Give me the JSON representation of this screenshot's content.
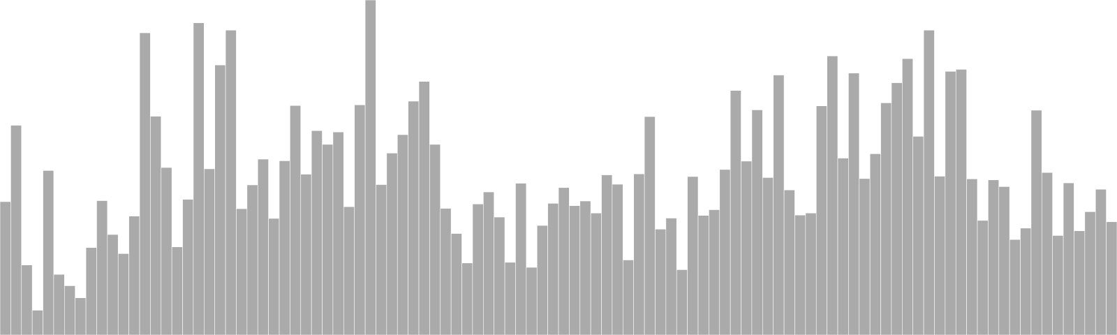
{
  "chart_data": {
    "type": "bar",
    "title": "",
    "xlabel": "",
    "ylabel": "",
    "ylim": [
      0,
      100
    ],
    "grid": false,
    "legend": "none",
    "bar_color": "#aaaaaa",
    "bar_edge_color": "#ffffff",
    "background_color": "#ffffff",
    "values": [
      39.8,
      62.6,
      20.9,
      7.4,
      49.1,
      18.1,
      14.7,
      11.1,
      26.1,
      40.1,
      30.0,
      24.3,
      35.5,
      90.2,
      65.3,
      50.0,
      26.3,
      40.5,
      93.2,
      49.6,
      80.6,
      91.0,
      37.7,
      44.8,
      52.5,
      34.8,
      52.0,
      68.5,
      48.0,
      61.0,
      56.9,
      60.6,
      38.3,
      68.7,
      100.0,
      44.9,
      54.3,
      59.8,
      69.8,
      75.7,
      56.9,
      37.8,
      30.3,
      21.5,
      39.1,
      42.7,
      35.2,
      21.7,
      45.3,
      20.2,
      32.7,
      39.3,
      44.0,
      38.6,
      40.0,
      36.4,
      47.8,
      45.0,
      22.4,
      48.1,
      65.2,
      31.6,
      34.9,
      19.5,
      47.3,
      35.7,
      37.4,
      49.4,
      73.0,
      51.9,
      67.2,
      47.0,
      77.6,
      43.3,
      35.8,
      36.4,
      68.4,
      83.3,
      52.8,
      78.2,
      46.7,
      54.1,
      69.3,
      75.3,
      82.5,
      59.3,
      91.0,
      47.4,
      78.7,
      79.3,
      46.6,
      34.2,
      46.3,
      44.3,
      28.5,
      31.9,
      67.1,
      48.5,
      29.7,
      45.4,
      31.1,
      36.8,
      43.5,
      33.8
    ]
  }
}
